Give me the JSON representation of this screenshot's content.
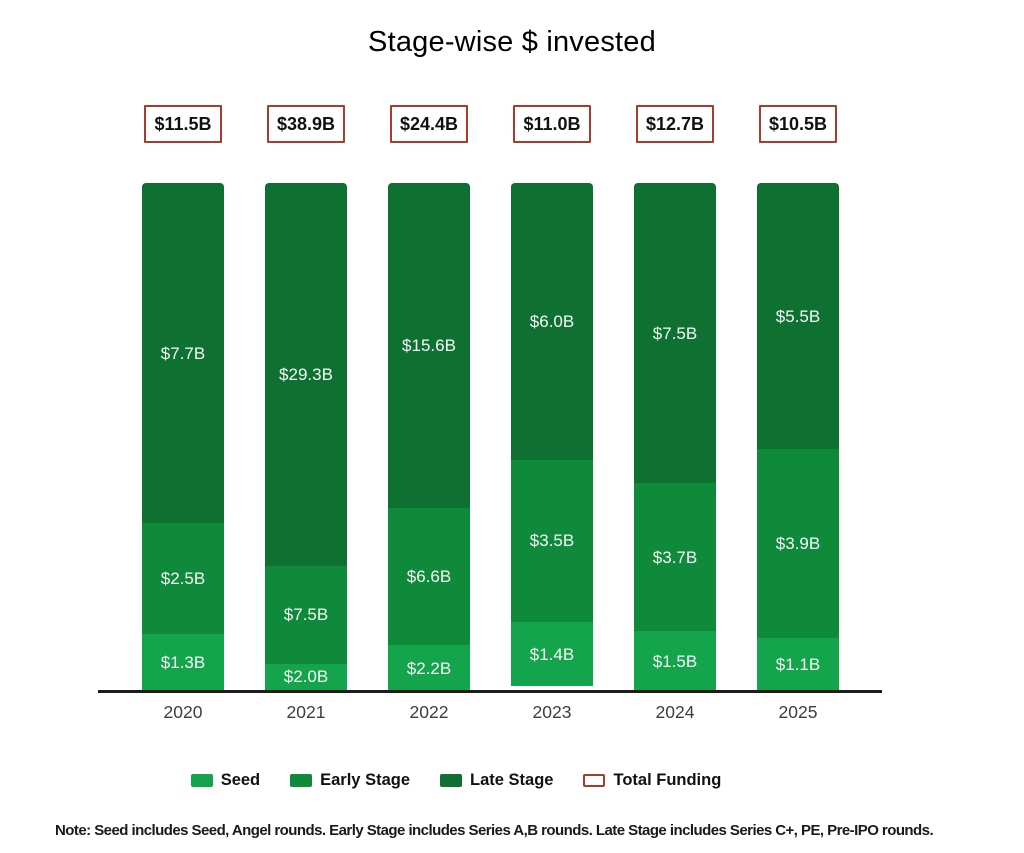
{
  "title": "Stage-wise $ invested",
  "note": "Note: Seed includes Seed, Angel rounds. Early Stage includes Series A,B rounds. Late Stage includes Series C+, PE, Pre-IPO rounds.",
  "colors": {
    "seed": "#14a44c",
    "early_stage": "#0e8a3a",
    "late_stage": "#0e7132",
    "total_funding_border": "#a53c2c",
    "axis": "#1c1c1c"
  },
  "legend": [
    {
      "label": "Seed",
      "color": "#14a44c",
      "style": "fill"
    },
    {
      "label": "Early Stage",
      "color": "#0e8a3a",
      "style": "fill"
    },
    {
      "label": "Late Stage",
      "color": "#0e7132",
      "style": "fill"
    },
    {
      "label": "Total Funding",
      "color": "#a53c2c",
      "style": "outline"
    }
  ],
  "chart_data": {
    "type": "bar",
    "stacked": true,
    "normalized_height": true,
    "title": "Stage-wise $ invested",
    "xlabel": "",
    "ylabel": "",
    "legend_position": "bottom",
    "grid": false,
    "categories": [
      "2020",
      "2021",
      "2022",
      "2023",
      "2024",
      "2025"
    ],
    "series": [
      {
        "name": "Seed",
        "color": "#14a44c",
        "values": [
          1.3,
          2.0,
          2.2,
          1.4,
          1.5,
          1.1
        ],
        "labels": [
          "$1.3B",
          "$2.0B",
          "$2.2B",
          "$1.4B",
          "$1.5B",
          "$1.1B"
        ]
      },
      {
        "name": "Early Stage",
        "color": "#0e8a3a",
        "values": [
          2.5,
          7.5,
          6.6,
          3.5,
          3.7,
          3.9
        ],
        "labels": [
          "$2.5B",
          "$7.5B",
          "$6.6B",
          "$3.5B",
          "$3.7B",
          "$3.9B"
        ]
      },
      {
        "name": "Late Stage",
        "color": "#0e7132",
        "values": [
          7.7,
          29.3,
          15.6,
          6.0,
          7.5,
          5.5
        ],
        "labels": [
          "$7.7B",
          "$29.3B",
          "$15.6B",
          "$6.0B",
          "$7.5B",
          "$5.5B"
        ]
      }
    ],
    "totals": {
      "name": "Total Funding",
      "values": [
        11.5,
        38.9,
        24.4,
        11.0,
        12.7,
        10.5
      ],
      "labels": [
        "$11.5B",
        "$38.9B",
        "$24.4B",
        "$11.0B",
        "$12.7B",
        "$10.5B"
      ]
    }
  }
}
